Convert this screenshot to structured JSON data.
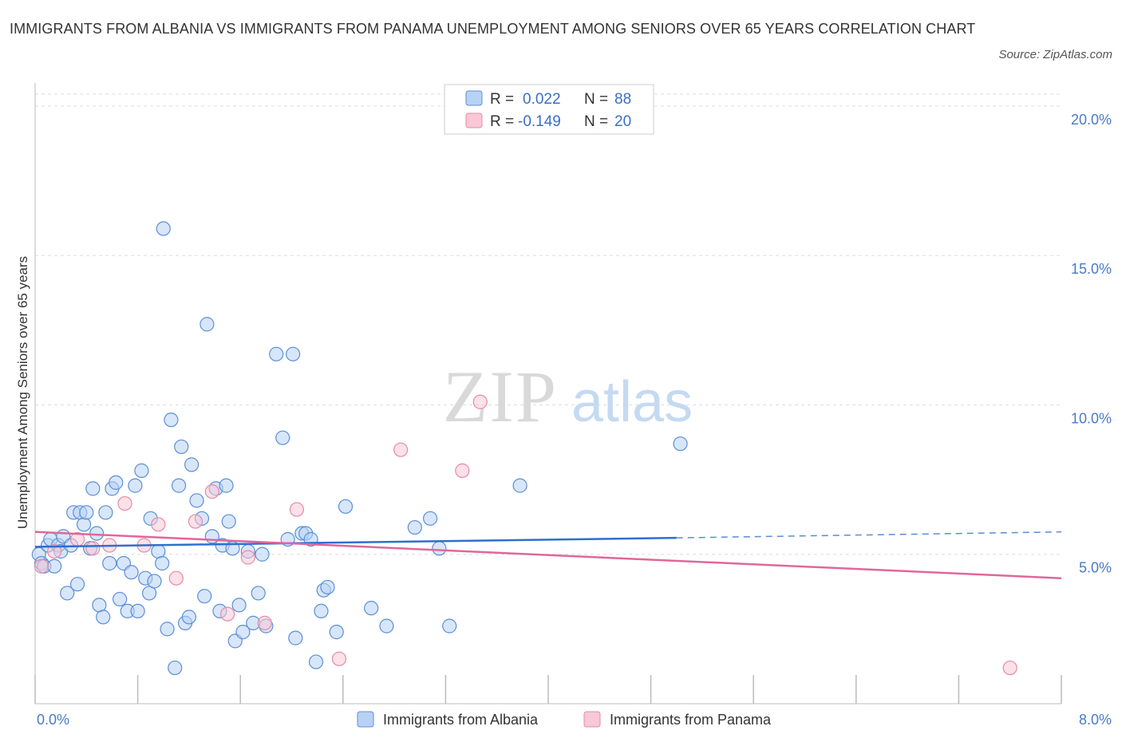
{
  "title": "IMMIGRANTS FROM ALBANIA VS IMMIGRANTS FROM PANAMA UNEMPLOYMENT AMONG SENIORS OVER 65 YEARS CORRELATION CHART",
  "source": "Source: ZipAtlas.com",
  "watermark": {
    "zip": "ZIP",
    "atlas": "atlas"
  },
  "colors": {
    "albania_fill": "#b8d2f5",
    "albania_stroke": "#5b8fd6",
    "albania_line": "#2f6fd0",
    "panama_fill": "#f8c8d6",
    "panama_stroke": "#e58aa6",
    "panama_line": "#e0679a",
    "grid": "#dddddd",
    "accent_text": "#4a7bc8"
  },
  "legend": {
    "rows": [
      {
        "r_label": "R =",
        "r_value": "0.022",
        "n_label": "N =",
        "n_value": "88"
      },
      {
        "r_label": "R =",
        "r_value": "-0.149",
        "n_label": "N =",
        "n_value": "20"
      }
    ]
  },
  "chart_data": {
    "type": "scatter",
    "title": "IMMIGRANTS FROM ALBANIA VS IMMIGRANTS FROM PANAMA UNEMPLOYMENT AMONG SENIORS OVER 65 YEARS CORRELATION CHART",
    "xlabel": "",
    "ylabel": "Unemployment Among Seniors over 65 years",
    "xlim": [
      0,
      8
    ],
    "ylim": [
      0,
      20.4
    ],
    "x_tick_labels": [
      {
        "value": 0,
        "label": "0.0%"
      },
      {
        "value": 8,
        "label": "8.0%"
      }
    ],
    "y_tick_labels": [
      {
        "value": 5,
        "label": "5.0%"
      },
      {
        "value": 10,
        "label": "10.0%"
      },
      {
        "value": 15,
        "label": "15.0%"
      },
      {
        "value": 20,
        "label": "20.0%"
      }
    ],
    "grid": true,
    "legend_position": "top-center",
    "series": [
      {
        "name": "Immigrants from Albania",
        "R": 0.022,
        "N": 88,
        "trend": {
          "x0": 0,
          "y0": 5.25,
          "x1": 5.0,
          "y1": 5.55,
          "dashed_to_x": 8.0,
          "dashed_to_y": 5.75
        },
        "points": [
          [
            0.03,
            5.0
          ],
          [
            0.05,
            4.7
          ],
          [
            0.07,
            4.6
          ],
          [
            0.1,
            5.3
          ],
          [
            0.12,
            5.5
          ],
          [
            0.15,
            4.6
          ],
          [
            0.18,
            5.3
          ],
          [
            0.2,
            5.1
          ],
          [
            0.22,
            5.6
          ],
          [
            0.25,
            3.7
          ],
          [
            0.28,
            5.3
          ],
          [
            0.3,
            6.4
          ],
          [
            0.33,
            4.0
          ],
          [
            0.35,
            6.4
          ],
          [
            0.38,
            6.0
          ],
          [
            0.4,
            6.4
          ],
          [
            0.43,
            5.2
          ],
          [
            0.45,
            7.2
          ],
          [
            0.48,
            5.7
          ],
          [
            0.5,
            3.3
          ],
          [
            0.53,
            2.9
          ],
          [
            0.55,
            6.4
          ],
          [
            0.58,
            4.7
          ],
          [
            0.6,
            7.2
          ],
          [
            0.63,
            7.4
          ],
          [
            0.66,
            3.5
          ],
          [
            0.69,
            4.7
          ],
          [
            0.72,
            3.1
          ],
          [
            0.75,
            4.4
          ],
          [
            0.78,
            7.3
          ],
          [
            0.8,
            3.1
          ],
          [
            0.83,
            7.8
          ],
          [
            0.86,
            4.2
          ],
          [
            0.89,
            3.7
          ],
          [
            0.9,
            6.2
          ],
          [
            0.93,
            4.1
          ],
          [
            0.96,
            5.1
          ],
          [
            0.99,
            4.7
          ],
          [
            1.0,
            15.9
          ],
          [
            1.03,
            2.5
          ],
          [
            1.06,
            9.5
          ],
          [
            1.09,
            1.2
          ],
          [
            1.12,
            7.3
          ],
          [
            1.14,
            8.6
          ],
          [
            1.17,
            2.7
          ],
          [
            1.2,
            2.9
          ],
          [
            1.22,
            8.0
          ],
          [
            1.26,
            6.8
          ],
          [
            1.3,
            6.2
          ],
          [
            1.32,
            3.6
          ],
          [
            1.34,
            12.7
          ],
          [
            1.38,
            5.6
          ],
          [
            1.41,
            7.2
          ],
          [
            1.44,
            3.1
          ],
          [
            1.46,
            5.3
          ],
          [
            1.49,
            7.3
          ],
          [
            1.51,
            6.1
          ],
          [
            1.54,
            5.2
          ],
          [
            1.56,
            2.1
          ],
          [
            1.59,
            3.3
          ],
          [
            1.62,
            2.4
          ],
          [
            1.66,
            5.1
          ],
          [
            1.7,
            2.7
          ],
          [
            1.74,
            3.7
          ],
          [
            1.77,
            5.0
          ],
          [
            1.8,
            2.6
          ],
          [
            1.88,
            11.7
          ],
          [
            1.93,
            8.9
          ],
          [
            1.97,
            5.5
          ],
          [
            2.01,
            11.7
          ],
          [
            2.03,
            2.2
          ],
          [
            2.08,
            5.7
          ],
          [
            2.11,
            5.7
          ],
          [
            2.15,
            5.5
          ],
          [
            2.19,
            1.4
          ],
          [
            2.23,
            3.1
          ],
          [
            2.25,
            3.8
          ],
          [
            2.28,
            3.9
          ],
          [
            2.35,
            2.4
          ],
          [
            2.42,
            6.6
          ],
          [
            2.62,
            3.2
          ],
          [
            2.74,
            2.6
          ],
          [
            2.96,
            5.9
          ],
          [
            3.08,
            6.2
          ],
          [
            3.15,
            5.2
          ],
          [
            3.23,
            2.6
          ],
          [
            3.78,
            7.3
          ],
          [
            5.03,
            8.7
          ]
        ]
      },
      {
        "name": "Immigrants from Panama",
        "R": -0.149,
        "N": 20,
        "trend": {
          "x0": 0,
          "y0": 5.75,
          "x1": 8.0,
          "y1": 4.2
        },
        "points": [
          [
            0.05,
            4.6
          ],
          [
            0.15,
            5.1
          ],
          [
            0.33,
            5.5
          ],
          [
            0.45,
            5.2
          ],
          [
            0.58,
            5.3
          ],
          [
            0.7,
            6.7
          ],
          [
            0.85,
            5.3
          ],
          [
            0.96,
            6.0
          ],
          [
            1.1,
            4.2
          ],
          [
            1.25,
            6.1
          ],
          [
            1.38,
            7.1
          ],
          [
            1.5,
            3.0
          ],
          [
            1.66,
            4.9
          ],
          [
            1.79,
            2.7
          ],
          [
            2.04,
            6.5
          ],
          [
            2.37,
            1.5
          ],
          [
            2.85,
            8.5
          ],
          [
            3.33,
            7.8
          ],
          [
            3.47,
            10.1
          ],
          [
            7.6,
            1.2
          ]
        ]
      }
    ]
  }
}
